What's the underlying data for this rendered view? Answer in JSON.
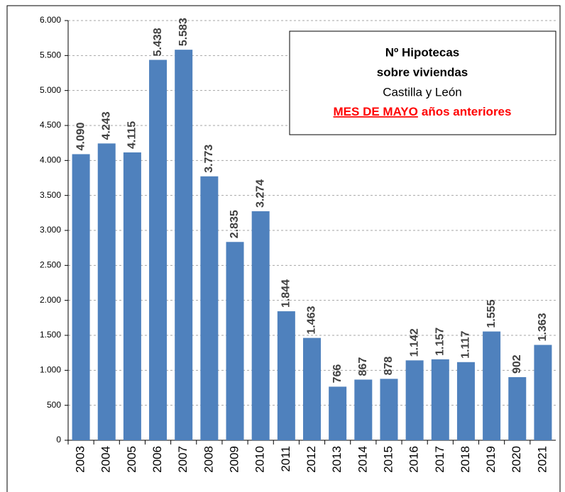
{
  "chart_data": {
    "type": "bar",
    "title": [
      "Nº Hipotecas",
      "sobre viviendas"
    ],
    "subtitle": "Castilla y León",
    "annotation": {
      "highlight": "MES DE MAYO",
      "text": "años anteriores"
    },
    "categories": [
      "2003",
      "2004",
      "2005",
      "2006",
      "2007",
      "2008",
      "2009",
      "2010",
      "2011",
      "2012",
      "2013",
      "2014",
      "2015",
      "2016",
      "2017",
      "2018",
      "2019",
      "2020",
      "2021"
    ],
    "values": [
      4090,
      4243,
      4115,
      5438,
      5583,
      3773,
      2835,
      3274,
      1844,
      1463,
      766,
      867,
      878,
      1142,
      1157,
      1117,
      1555,
      902,
      1363
    ],
    "value_labels": [
      "4.090",
      "4.243",
      "4.115",
      "5.438",
      "5.583",
      "3.773",
      "2.835",
      "3.274",
      "1.844",
      "1.463",
      "766",
      "867",
      "878",
      "1.142",
      "1.157",
      "1.117",
      "1.555",
      "902",
      "1.363"
    ],
    "color": "#4f81bd",
    "ylim": [
      0,
      6000
    ],
    "yticks": [
      0,
      500,
      {
        "value": 1000,
        "label": "1.000"
      },
      {
        "value": 1500,
        "label": "1.500"
      },
      {
        "value": 2000,
        "label": "2.000"
      },
      {
        "value": 2500,
        "label": "2.500"
      },
      {
        "value": 3000,
        "label": "3.000"
      },
      {
        "value": 3500,
        "label": "3.500"
      },
      {
        "value": 4000,
        "label": "4.000"
      },
      {
        "value": 4500,
        "label": "4.500"
      },
      {
        "value": 5000,
        "label": "5.000"
      },
      {
        "value": 5500,
        "label": "5.500"
      },
      {
        "value": 6000,
        "label": "6.000"
      }
    ],
    "grid": true
  }
}
